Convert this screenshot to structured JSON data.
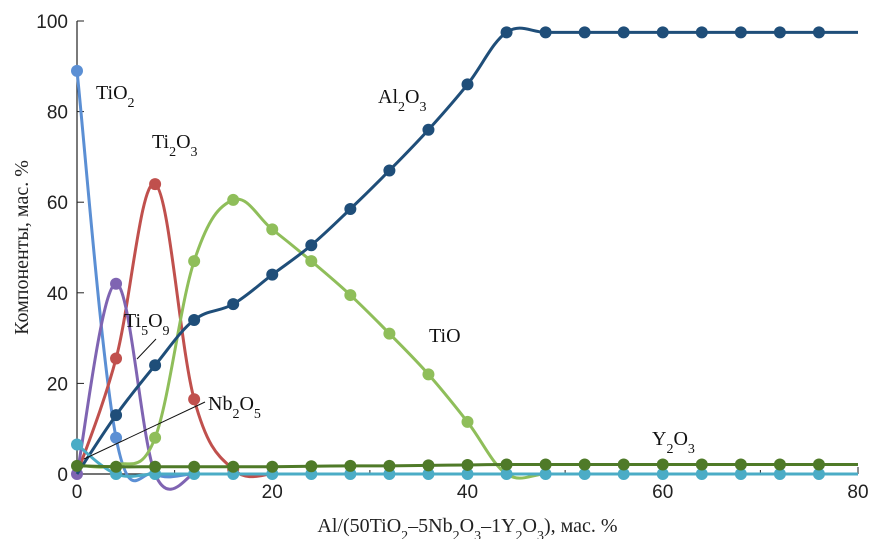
{
  "chart_data": {
    "type": "line",
    "xlabel_parts": [
      "Al/(50TiO",
      "2",
      "–5Nb",
      "2",
      "O",
      "3",
      "–1Y",
      "2",
      "O",
      "3",
      "), мас. %"
    ],
    "ylabel": "Компоненты, мас. %",
    "xlim": [
      0,
      80
    ],
    "ylim": [
      0,
      100
    ],
    "xticks": [
      "0",
      "20",
      "40",
      "60",
      "80"
    ],
    "yticks": [
      "0",
      "20",
      "40",
      "60",
      "80",
      "100"
    ],
    "grid": false,
    "legend": "none",
    "series": [
      {
        "label_parts": [
          "TiO",
          "2"
        ],
        "color": "#5b8fd4",
        "x": [
          0,
          4,
          8,
          12,
          16,
          20,
          24,
          28,
          32,
          36,
          40,
          44,
          48,
          52,
          56,
          60,
          64,
          68,
          72,
          76,
          80
        ],
        "y": [
          89,
          8,
          0,
          0,
          0,
          0,
          0,
          0,
          0,
          0,
          0,
          0,
          0,
          0,
          0,
          0,
          0,
          0,
          0,
          0,
          0
        ],
        "markers": [
          true,
          true,
          false,
          false,
          false,
          false,
          false,
          false,
          false,
          false,
          false,
          false,
          false,
          false,
          false,
          false,
          false,
          false,
          false,
          false,
          false
        ]
      },
      {
        "label_parts": [
          "Ti",
          "2",
          "O",
          "3"
        ],
        "color": "#c0504d",
        "x": [
          0,
          4,
          8,
          12,
          16,
          20
        ],
        "y": [
          0,
          25.5,
          64,
          16.5,
          1,
          0
        ],
        "markers": [
          false,
          true,
          true,
          true,
          true,
          false
        ]
      },
      {
        "label_parts": [
          "Ti",
          "5",
          "O",
          "9"
        ],
        "color": "#7f64b2",
        "x": [
          0,
          4,
          8,
          12
        ],
        "y": [
          0,
          42,
          0,
          0
        ],
        "markers": [
          true,
          true,
          false,
          false
        ]
      },
      {
        "label_parts": [
          "TiO"
        ],
        "color": "#8fbe5a",
        "x": [
          0,
          4,
          8,
          12,
          16,
          20,
          24,
          28,
          32,
          36,
          40,
          44,
          48,
          52,
          56,
          60,
          64,
          68,
          72,
          76,
          80
        ],
        "y": [
          2,
          2,
          8,
          47,
          60.5,
          54,
          47,
          39.5,
          31,
          22,
          11.5,
          0,
          0,
          0,
          0,
          0,
          0,
          0,
          0,
          0,
          0
        ],
        "markers": [
          false,
          false,
          true,
          true,
          true,
          true,
          true,
          true,
          true,
          true,
          true,
          false,
          false,
          false,
          false,
          false,
          false,
          false,
          false,
          false,
          false
        ]
      },
      {
        "label_parts": [
          "Al",
          "2",
          "O",
          "3"
        ],
        "color": "#1f4e79",
        "x": [
          0,
          4,
          8,
          12,
          16,
          20,
          24,
          28,
          32,
          36,
          40,
          44,
          48,
          52,
          56,
          60,
          64,
          68,
          72,
          76,
          80
        ],
        "y": [
          0,
          13,
          24,
          34,
          37.5,
          44,
          50.5,
          58.5,
          67,
          76,
          86,
          97.5,
          97.5,
          97.5,
          97.5,
          97.5,
          97.5,
          97.5,
          97.5,
          97.5,
          97.5
        ],
        "markers": [
          false,
          true,
          true,
          true,
          true,
          true,
          true,
          true,
          true,
          true,
          true,
          true,
          true,
          true,
          true,
          true,
          true,
          true,
          true,
          true,
          false
        ]
      },
      {
        "label_parts": [
          "Nb",
          "2",
          "O",
          "5"
        ],
        "color": "#4bacc6",
        "x": [
          0,
          4,
          8,
          12,
          16,
          20,
          24,
          28,
          32,
          36,
          40,
          44,
          48,
          52,
          56,
          60,
          64,
          68,
          72,
          76,
          80
        ],
        "y": [
          6.5,
          0,
          0,
          0,
          0,
          0,
          0,
          0,
          0,
          0,
          0,
          0,
          0,
          0,
          0,
          0,
          0,
          0,
          0,
          0,
          0
        ],
        "markers": [
          true,
          true,
          true,
          true,
          true,
          true,
          true,
          true,
          true,
          true,
          true,
          true,
          true,
          true,
          true,
          true,
          true,
          true,
          true,
          true,
          false
        ]
      },
      {
        "label_parts": [
          "Y",
          "2",
          "O",
          "3"
        ],
        "color": "#4f7a28",
        "x": [
          0,
          4,
          8,
          12,
          16,
          20,
          24,
          28,
          32,
          36,
          40,
          44,
          48,
          52,
          56,
          60,
          64,
          68,
          72,
          76,
          80
        ],
        "y": [
          1.8,
          1.6,
          1.6,
          1.6,
          1.6,
          1.6,
          1.7,
          1.8,
          1.8,
          1.9,
          2.0,
          2.1,
          2.1,
          2.1,
          2.1,
          2.1,
          2.1,
          2.1,
          2.1,
          2.1,
          2.1
        ],
        "markers": [
          true,
          true,
          true,
          true,
          true,
          true,
          true,
          true,
          true,
          true,
          true,
          true,
          true,
          true,
          true,
          true,
          true,
          true,
          true,
          true,
          false
        ]
      }
    ]
  }
}
